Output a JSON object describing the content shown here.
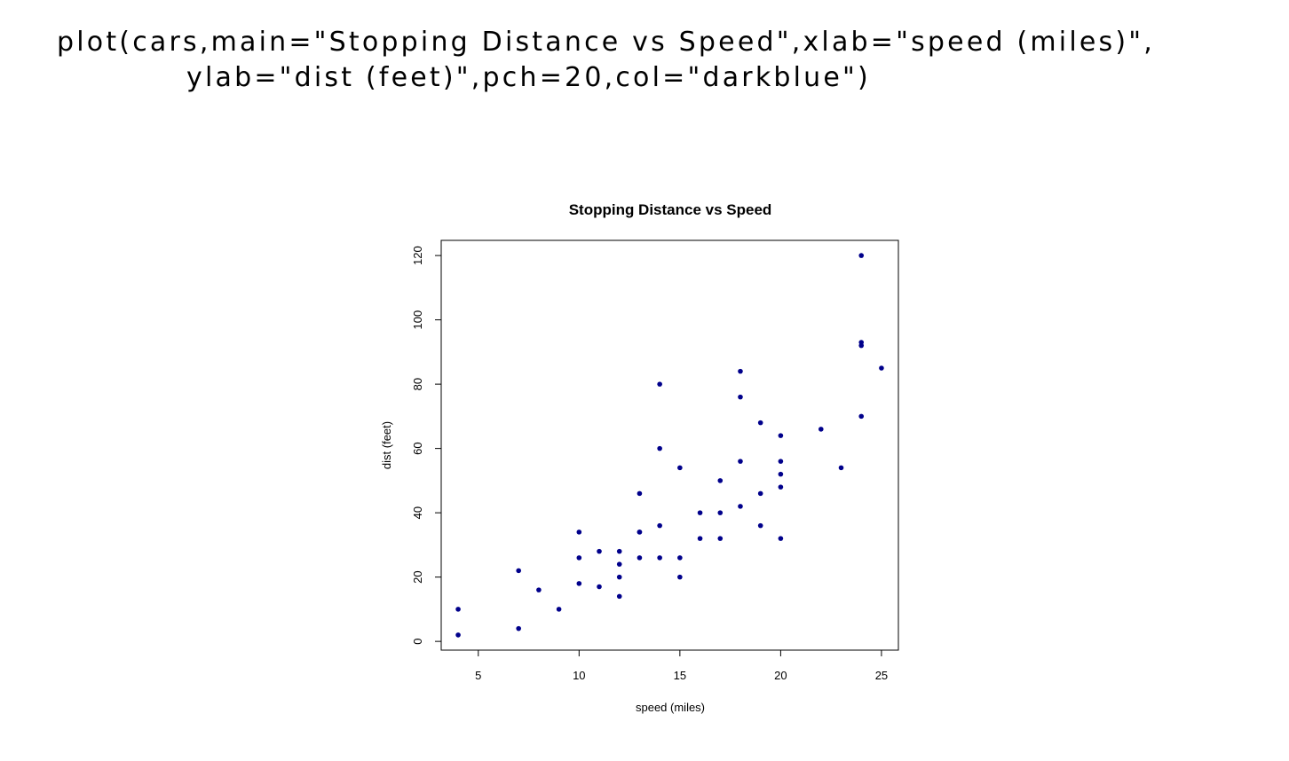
{
  "code": {
    "line1": "plot(cars,main=\"Stopping Distance vs Speed\",xlab=\"speed (miles)\",",
    "line2": "ylab=\"dist (feet)\",pch=20,col=\"darkblue\")"
  },
  "chart_data": {
    "type": "scatter",
    "title": "Stopping Distance vs Speed",
    "xlabel": "speed (miles)",
    "ylabel": "dist (feet)",
    "xlim": [
      3.16,
      25.84
    ],
    "ylim": [
      -2.72,
      124.72
    ],
    "xticks": [
      5,
      10,
      15,
      20,
      25
    ],
    "yticks": [
      0,
      20,
      40,
      60,
      80,
      100,
      120
    ],
    "point_color": "#00008B",
    "grid": false,
    "x": [
      4,
      4,
      7,
      7,
      8,
      9,
      10,
      10,
      10,
      11,
      11,
      12,
      12,
      12,
      12,
      13,
      13,
      13,
      13,
      14,
      14,
      14,
      14,
      15,
      15,
      15,
      16,
      16,
      17,
      17,
      17,
      18,
      18,
      18,
      18,
      19,
      19,
      19,
      20,
      20,
      20,
      20,
      20,
      22,
      23,
      24,
      24,
      24,
      24,
      25
    ],
    "y": [
      2,
      10,
      4,
      22,
      16,
      10,
      18,
      26,
      34,
      17,
      28,
      14,
      20,
      24,
      28,
      26,
      34,
      34,
      46,
      26,
      36,
      60,
      80,
      20,
      26,
      54,
      32,
      40,
      32,
      40,
      50,
      42,
      56,
      76,
      84,
      36,
      46,
      68,
      32,
      48,
      52,
      56,
      64,
      66,
      54,
      70,
      92,
      93,
      120,
      85
    ]
  }
}
